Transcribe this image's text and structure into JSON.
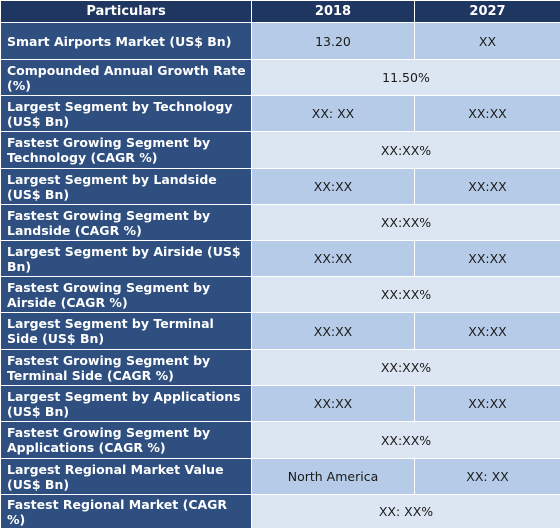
{
  "header": {
    "particulars": "Particulars",
    "year1": "2018",
    "year2": "2027"
  },
  "rows": [
    {
      "label": "Smart Airports  Market (US$ Bn)",
      "v1": "13.20",
      "v2": "XX"
    },
    {
      "label": "Compounded Annual Growth Rate (%)",
      "merged": "11.50%"
    },
    {
      "label": "Largest Segment by Technology (US$ Bn)",
      "v1": "XX: XX",
      "v2": "XX:XX"
    },
    {
      "label": "Fastest Growing Segment by Technology (CAGR %)",
      "merged": "XX:XX%"
    },
    {
      "label": "Largest Segment by Landside (US$ Bn)",
      "v1": "XX:XX",
      "v2": "XX:XX"
    },
    {
      "label": "Fastest Growing Segment by Landside (CAGR %)",
      "merged": "XX:XX%"
    },
    {
      "label": "Largest Segment by Airside (US$ Bn)",
      "v1": "XX:XX",
      "v2": "XX:XX"
    },
    {
      "label": "Fastest Growing Segment by Airside (CAGR %)",
      "merged": "XX:XX%"
    },
    {
      "label": "Largest Segment by Terminal Side (US$ Bn)",
      "v1": "XX:XX",
      "v2": "XX:XX"
    },
    {
      "label": "Fastest Growing Segment by Terminal Side (CAGR %)",
      "merged": "XX:XX%"
    },
    {
      "label": "Largest Segment by Applications (US$ Bn)",
      "v1": "XX:XX",
      "v2": "XX:XX"
    },
    {
      "label": "Fastest Growing Segment by Applications (CAGR %)",
      "merged": "XX:XX%"
    },
    {
      "label": "Largest Regional Market Value (US$ Bn)",
      "v1": "North America",
      "v2": "XX: XX"
    },
    {
      "label": "Fastest Regional Market (CAGR %)",
      "merged": "XX: XX%"
    }
  ],
  "colors": {
    "header_bg": "#1f3760",
    "label_bg": "#2e4f7f",
    "value_bg_a": "#b6cbe8",
    "value_bg_b": "#dce6f3"
  }
}
